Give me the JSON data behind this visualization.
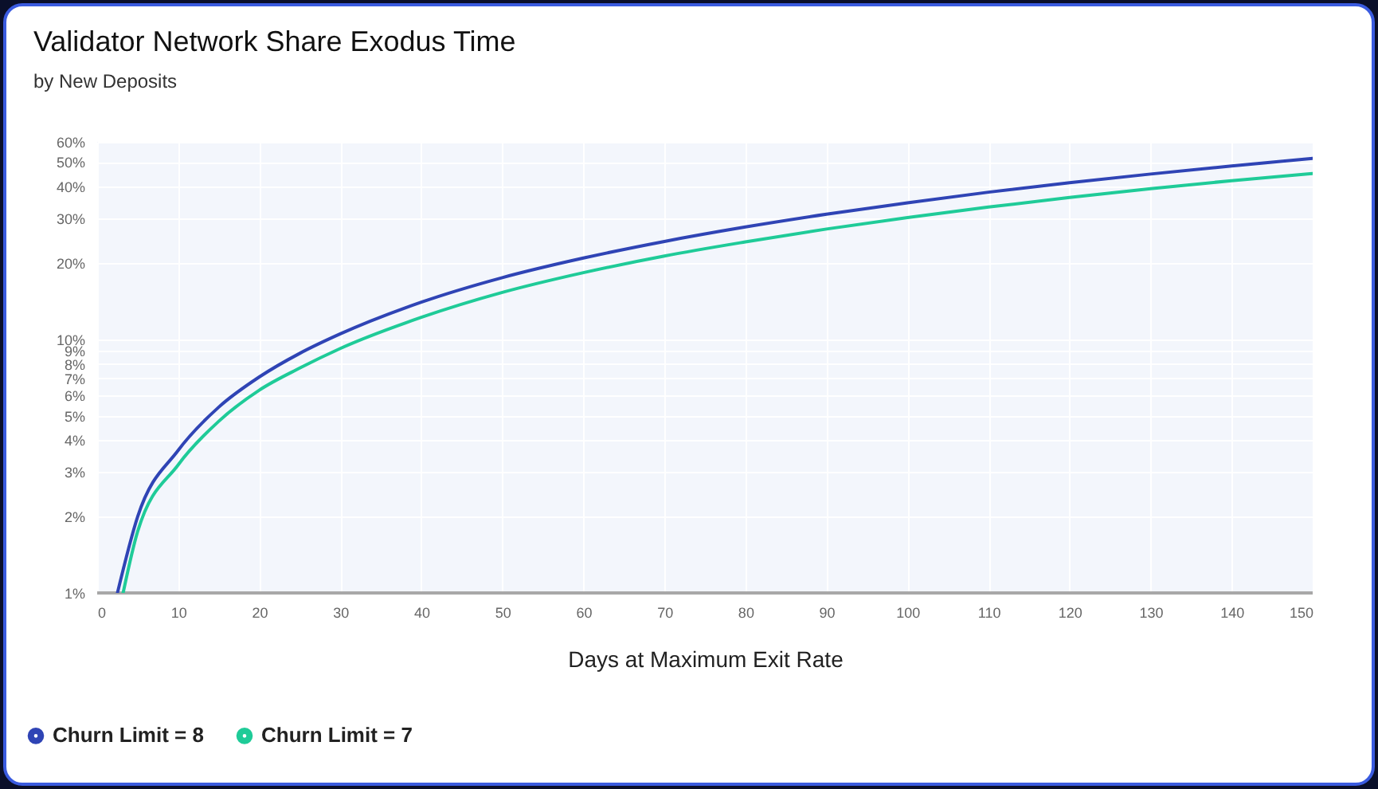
{
  "chart_data": {
    "type": "line",
    "title": "Validator Network Share Exodus Time",
    "subtitle": "by New Deposits",
    "xlabel": "Days at Maximum Exit Rate",
    "series": [
      {
        "name": "Churn Limit = 8",
        "color": "#2f44b5",
        "x": [
          2.5,
          5,
          10,
          15,
          20,
          25,
          30,
          40,
          50,
          60,
          70,
          80,
          90,
          100,
          110,
          120,
          130,
          140,
          150
        ],
        "values": [
          1,
          2.0,
          3.65,
          5.4,
          7.1,
          8.8,
          10.5,
          14,
          17.5,
          20.9,
          24.3,
          27.7,
          31.1,
          34.5,
          38,
          41.4,
          44.8,
          48.2,
          51.6
        ]
      },
      {
        "name": "Churn Limit = 7",
        "color": "#1fcb98",
        "x": [
          3.2,
          5,
          10,
          15,
          20,
          25,
          30,
          40,
          50,
          60,
          70,
          80,
          90,
          100,
          110,
          120,
          130,
          140,
          150
        ],
        "values": [
          1,
          1.75,
          3.2,
          4.75,
          6.3,
          7.7,
          9.2,
          12.2,
          15.3,
          18.3,
          21.3,
          24.2,
          27.2,
          30.2,
          33.2,
          36.2,
          39.2,
          42.2,
          45
        ]
      }
    ],
    "xlim": [
      0,
      150
    ],
    "xticks": [
      0,
      10,
      20,
      30,
      40,
      50,
      60,
      70,
      80,
      90,
      100,
      110,
      120,
      130,
      140,
      150
    ],
    "ylim": [
      1,
      60
    ],
    "log": "y",
    "yticks": [
      {
        "value": 1,
        "label": "1%"
      },
      {
        "value": 2,
        "label": "2%"
      },
      {
        "value": 3,
        "label": "3%"
      },
      {
        "value": 4,
        "label": "4%"
      },
      {
        "value": 5,
        "label": "5%"
      },
      {
        "value": 6,
        "label": "6%"
      },
      {
        "value": 7,
        "label": "7%"
      },
      {
        "value": 8,
        "label": "8%"
      },
      {
        "value": 9,
        "label": "9%"
      },
      {
        "value": 10,
        "label": "10%"
      },
      {
        "value": 20,
        "label": "20%"
      },
      {
        "value": 30,
        "label": "30%"
      },
      {
        "value": 40,
        "label": "40%"
      },
      {
        "value": 50,
        "label": "50%"
      },
      {
        "value": 60,
        "label": "60%"
      }
    ],
    "grid": true,
    "legend": "bottom left",
    "line_style": "solid"
  }
}
